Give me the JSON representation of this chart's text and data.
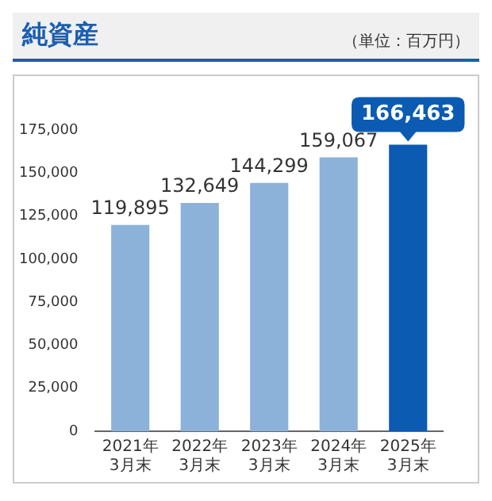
{
  "chart_data": {
    "type": "bar",
    "title": "純資産",
    "subtitle": "（単位：百万円）",
    "categories": [
      "2021年\n3月末",
      "2022年\n3月末",
      "2023年\n3月末",
      "2024年\n3月末",
      "2025年\n3月末"
    ],
    "values": [
      119895,
      132649,
      144299,
      159067,
      166463
    ],
    "value_labels": [
      "119,895",
      "132,649",
      "144,299",
      "159,067",
      "166,463"
    ],
    "colors": [
      "#8cb2da",
      "#8cb2da",
      "#8cb2da",
      "#8cb2da",
      "#0b5bb3"
    ],
    "ylim": [
      0,
      175000
    ],
    "yticks": [
      0,
      {
        "value": 25000,
        "label": "25,000"
      },
      {
        "value": 50000,
        "label": "50,000"
      },
      {
        "value": 75000,
        "label": "75,000"
      },
      {
        "value": 100000,
        "label": "100,000"
      },
      {
        "value": 125000,
        "label": "125,000"
      },
      {
        "value": 150000,
        "label": "150,000"
      },
      {
        "value": 175000,
        "label": "175,000"
      }
    ],
    "grid": false
  }
}
